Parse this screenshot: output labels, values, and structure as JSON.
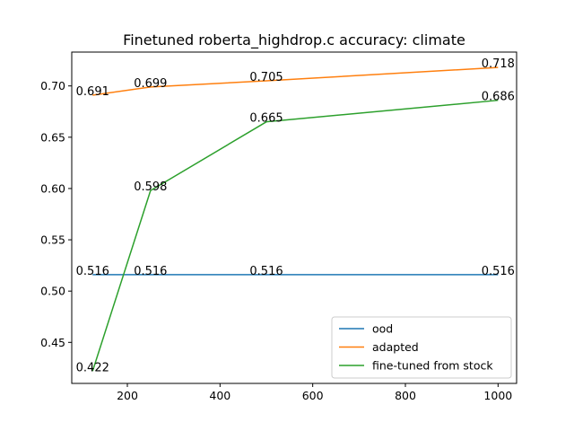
{
  "chart_data": {
    "type": "line",
    "title": "Finetuned roberta_highdrop.c accuracy: climate",
    "xlabel": "",
    "ylabel": "",
    "xlim": [
      80,
      1040
    ],
    "ylim": [
      0.41,
      0.733
    ],
    "xticks": [
      200,
      400,
      600,
      800,
      1000
    ],
    "xtick_labels": [
      "200",
      "400",
      "600",
      "800",
      "1000"
    ],
    "yticks": [
      0.45,
      0.5,
      0.55,
      0.6,
      0.65,
      0.7
    ],
    "ytick_labels": [
      "0.45",
      "0.50",
      "0.55",
      "0.60",
      "0.65",
      "0.70"
    ],
    "grid": false,
    "legend_position": "lower-right",
    "series": [
      {
        "name": "ood",
        "color": "#1f77b4",
        "x": [
          125,
          250,
          500,
          1000
        ],
        "y": [
          0.516,
          0.516,
          0.516,
          0.516
        ],
        "labels": [
          "0.516",
          "0.516",
          "0.516",
          "0.516"
        ]
      },
      {
        "name": "adapted",
        "color": "#ff7f0e",
        "x": [
          125,
          250,
          500,
          1000
        ],
        "y": [
          0.691,
          0.699,
          0.705,
          0.718
        ],
        "labels": [
          "0.691",
          "0.699",
          "0.705",
          "0.718"
        ]
      },
      {
        "name": "fine-tuned from stock",
        "color": "#2ca02c",
        "x": [
          125,
          250,
          500,
          1000
        ],
        "y": [
          0.422,
          0.598,
          0.665,
          0.686
        ],
        "labels": [
          "0.422",
          "0.598",
          "0.665",
          "0.686"
        ]
      }
    ]
  }
}
